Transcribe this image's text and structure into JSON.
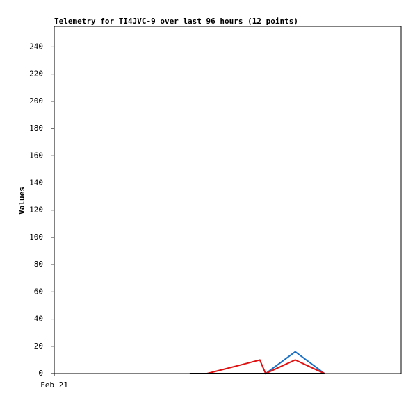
{
  "chart_data": {
    "type": "line",
    "title": "Telemetry for TI4JVC-9 over last 96 hours (12 points)",
    "y_label": "Values",
    "x": [
      37.5,
      40,
      42.3,
      47,
      52,
      56.9,
      58.5,
      62,
      66.7,
      70,
      73,
      74.8
    ],
    "xlim": [
      0,
      96
    ],
    "xticks": [
      {
        "value": 0,
        "label": "Feb 21"
      }
    ],
    "ylim": [
      0,
      255
    ],
    "yticks": [
      0,
      20,
      40,
      60,
      80,
      100,
      120,
      140,
      160,
      180,
      200,
      220,
      240
    ],
    "series": [
      {
        "color": "#1a6fc4",
        "values": [
          0,
          0,
          0,
          0,
          0,
          0,
          0,
          6.8,
          16,
          9.5,
          3.6,
          0
        ]
      },
      {
        "color": "#e01010",
        "values": [
          0,
          0,
          0,
          3.2,
          6.6,
          10,
          0,
          4.3,
          10,
          5.9,
          2.2,
          0
        ]
      },
      {
        "color": "#000000",
        "values": [
          0,
          0,
          0,
          0,
          0,
          0,
          0,
          0,
          0,
          0,
          0,
          0
        ]
      }
    ]
  }
}
